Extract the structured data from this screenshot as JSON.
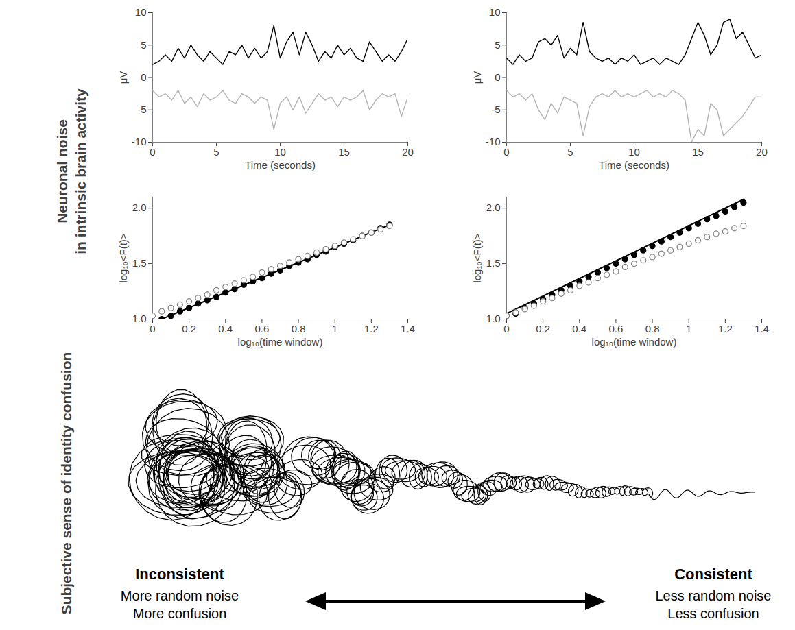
{
  "chart_data": [
    {
      "type": "line",
      "xlabel": "Time (seconds)",
      "ylabel": "μV",
      "x": [
        0,
        0.5,
        1,
        1.5,
        2,
        2.5,
        3,
        3.5,
        4,
        4.5,
        5,
        5.5,
        6,
        6.5,
        7,
        7.5,
        8,
        8.5,
        9,
        9.5,
        10,
        10.5,
        11,
        11.5,
        12,
        12.5,
        13,
        13.5,
        14,
        14.5,
        15,
        15.5,
        16,
        16.5,
        17,
        17.5,
        18,
        18.5,
        19,
        19.5,
        20
      ],
      "series": [
        {
          "color": "#000000",
          "values": [
            2,
            2.5,
            3.5,
            2.5,
            4.5,
            3,
            5,
            3.5,
            2.5,
            4,
            3,
            2,
            4,
            3.5,
            5,
            3,
            4.5,
            3,
            4,
            8,
            3,
            5.5,
            7,
            3.5,
            7,
            5,
            2.5,
            4,
            3,
            5,
            3.5,
            4.5,
            3,
            2.5,
            5.5,
            4,
            2.5,
            3.5,
            2.5,
            4,
            6
          ]
        },
        {
          "color": "#b4b4b4",
          "values": [
            -2,
            -3,
            -2.5,
            -3.5,
            -2,
            -4,
            -3,
            -4.5,
            -2.5,
            -3.5,
            -3,
            -2,
            -3.5,
            -4,
            -2.5,
            -3,
            -4,
            -3,
            -3.5,
            -8,
            -4,
            -3,
            -5,
            -3,
            -5.5,
            -4,
            -2.5,
            -3.5,
            -3,
            -4.5,
            -3,
            -3.5,
            -3,
            -2,
            -5,
            -3.5,
            -2.5,
            -3,
            -2.5,
            -6,
            -3
          ]
        }
      ],
      "xlim": [
        0,
        20
      ],
      "xticks": [
        0,
        5,
        10,
        15,
        20
      ],
      "ylim": [
        -10,
        10
      ],
      "yticks": [
        -10,
        -5,
        0,
        5,
        10
      ]
    },
    {
      "type": "line",
      "xlabel": "Time (seconds)",
      "ylabel": "μV",
      "x": [
        0,
        0.5,
        1,
        1.5,
        2,
        2.5,
        3,
        3.5,
        4,
        4.5,
        5,
        5.5,
        6,
        6.5,
        7,
        7.5,
        8,
        8.5,
        9,
        9.5,
        10,
        10.5,
        11,
        11.5,
        12,
        12.5,
        13,
        13.5,
        14,
        14.5,
        15,
        15.5,
        16,
        16.5,
        17,
        17.5,
        18,
        18.5,
        19,
        19.5,
        20
      ],
      "series": [
        {
          "color": "#000000",
          "values": [
            3,
            2,
            3.5,
            2.5,
            3,
            5.5,
            6,
            5,
            6.5,
            3,
            4.5,
            3.5,
            8.5,
            4,
            3,
            2.5,
            3,
            2,
            3,
            2.5,
            3.5,
            2,
            2.5,
            3,
            2,
            3,
            2.5,
            2,
            3.5,
            6,
            8.5,
            6.5,
            3.5,
            5,
            8.5,
            9,
            6,
            7,
            5,
            3,
            3.5
          ]
        },
        {
          "color": "#b4b4b4",
          "values": [
            -2,
            -3,
            -2.5,
            -3.5,
            -2.5,
            -5,
            -6.5,
            -4,
            -5.5,
            -3,
            -3.5,
            -4,
            -9,
            -4.5,
            -3,
            -2.5,
            -3,
            -2,
            -3,
            -2.5,
            -3,
            -2.5,
            -2,
            -3,
            -2.5,
            -3,
            -2,
            -2.5,
            -3.5,
            -10,
            -8,
            -9,
            -4,
            -5,
            -9,
            -8,
            -7,
            -6,
            -4.5,
            -3,
            -3
          ]
        }
      ],
      "xlim": [
        0,
        20
      ],
      "xticks": [
        0,
        5,
        10,
        15,
        20
      ],
      "ylim": [
        -10,
        10
      ],
      "yticks": [
        -10,
        -5,
        0,
        5,
        10
      ]
    },
    {
      "type": "scatter",
      "xlabel": "log₁₀(time window)",
      "ylabel": "log₁₀<F(t)>",
      "series": [
        {
          "type": "line",
          "color": "#000000",
          "x": [
            0.05,
            1.3
          ],
          "values": [
            1.0,
            1.85
          ]
        },
        {
          "type": "scatter",
          "marker": "filled",
          "color": "#000000",
          "x": [
            0.05,
            0.1,
            0.15,
            0.2,
            0.25,
            0.3,
            0.35,
            0.4,
            0.45,
            0.5,
            0.55,
            0.6,
            0.65,
            0.7,
            0.75,
            0.8,
            0.85,
            0.9,
            0.95,
            1,
            1.05,
            1.1,
            1.15,
            1.2,
            1.25,
            1.3
          ],
          "values": [
            1.0,
            1.03,
            1.07,
            1.1,
            1.14,
            1.17,
            1.2,
            1.24,
            1.27,
            1.31,
            1.34,
            1.37,
            1.41,
            1.44,
            1.48,
            1.51,
            1.54,
            1.58,
            1.61,
            1.65,
            1.68,
            1.71,
            1.75,
            1.78,
            1.82,
            1.85
          ]
        },
        {
          "type": "scatter",
          "marker": "open",
          "color": "#808080",
          "x": [
            0,
            0.05,
            0.1,
            0.15,
            0.2,
            0.25,
            0.3,
            0.35,
            0.4,
            0.45,
            0.5,
            0.55,
            0.6,
            0.65,
            0.7,
            0.75,
            0.8,
            0.85,
            0.9,
            0.95,
            1,
            1.05,
            1.1,
            1.15,
            1.2,
            1.25,
            1.3
          ],
          "values": [
            1.03,
            1.07,
            1.1,
            1.13,
            1.16,
            1.19,
            1.22,
            1.26,
            1.29,
            1.32,
            1.35,
            1.38,
            1.42,
            1.45,
            1.48,
            1.51,
            1.54,
            1.57,
            1.6,
            1.63,
            1.66,
            1.69,
            1.72,
            1.75,
            1.78,
            1.81,
            1.84
          ]
        }
      ],
      "xlim": [
        0,
        1.4
      ],
      "xticks": [
        0,
        0.2,
        0.4,
        0.6,
        0.8,
        1,
        1.2,
        1.4
      ],
      "ylim": [
        1.0,
        2.1
      ],
      "yticks": [
        {
          "value": 1.0,
          "label": "1.0"
        },
        {
          "value": 1.5,
          "label": "1.5"
        },
        {
          "value": 2.0,
          "label": "2.0"
        }
      ]
    },
    {
      "type": "scatter",
      "xlabel": "log₁₀(time window)",
      "ylabel": "log₁₀<F(t)>",
      "series": [
        {
          "type": "line",
          "color": "#000000",
          "x": [
            0,
            1.3
          ],
          "values": [
            1.05,
            2.08
          ]
        },
        {
          "type": "scatter",
          "marker": "filled",
          "color": "#000000",
          "x": [
            0,
            0.05,
            0.1,
            0.15,
            0.2,
            0.25,
            0.3,
            0.35,
            0.4,
            0.45,
            0.5,
            0.55,
            0.6,
            0.65,
            0.7,
            0.75,
            0.8,
            0.85,
            0.9,
            0.95,
            1,
            1.05,
            1.1,
            1.15,
            1.2,
            1.25,
            1.3
          ],
          "values": [
            1.03,
            1.05,
            1.1,
            1.14,
            1.18,
            1.22,
            1.26,
            1.3,
            1.34,
            1.38,
            1.42,
            1.46,
            1.5,
            1.54,
            1.58,
            1.62,
            1.66,
            1.7,
            1.74,
            1.78,
            1.82,
            1.86,
            1.9,
            1.93,
            1.97,
            2.01,
            2.05
          ]
        },
        {
          "type": "scatter",
          "marker": "open",
          "color": "#808080",
          "x": [
            0,
            0.05,
            0.1,
            0.15,
            0.2,
            0.25,
            0.3,
            0.35,
            0.4,
            0.45,
            0.5,
            0.55,
            0.6,
            0.65,
            0.7,
            0.75,
            0.8,
            0.85,
            0.9,
            0.95,
            1,
            1.05,
            1.1,
            1.15,
            1.2,
            1.25,
            1.3
          ],
          "values": [
            1.03,
            1.06,
            1.09,
            1.12,
            1.16,
            1.19,
            1.23,
            1.26,
            1.3,
            1.33,
            1.37,
            1.4,
            1.43,
            1.47,
            1.5,
            1.53,
            1.56,
            1.59,
            1.62,
            1.65,
            1.68,
            1.71,
            1.74,
            1.77,
            1.79,
            1.82,
            1.84
          ]
        }
      ],
      "xlim": [
        0,
        1.4
      ],
      "xticks": [
        0,
        0.2,
        0.4,
        0.6,
        0.8,
        1,
        1.2,
        1.4
      ],
      "ylim": [
        1.0,
        2.1
      ],
      "yticks": [
        {
          "value": 1.0,
          "label": "1.0"
        },
        {
          "value": 1.5,
          "label": "1.5"
        },
        {
          "value": 2.0,
          "label": "2.0"
        }
      ]
    }
  ],
  "row_labels": [
    "Neuronal noise in intrinsic brain activity",
    "Subjective sense of identity confusion"
  ],
  "diagram": {
    "left": {
      "heading": "Inconsistent",
      "lines": [
        "More random noise",
        "More confusion"
      ]
    },
    "right": {
      "heading": "Consistent",
      "lines": [
        "Less random noise",
        "Less confusion"
      ]
    }
  }
}
